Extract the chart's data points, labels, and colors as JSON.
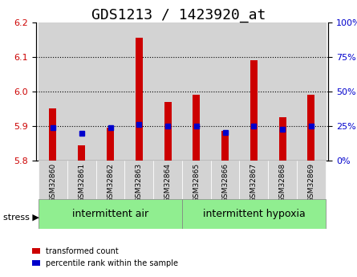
{
  "title": "GDS1213 / 1423920_at",
  "samples": [
    "GSM32860",
    "GSM32861",
    "GSM32862",
    "GSM32863",
    "GSM32864",
    "GSM32865",
    "GSM32866",
    "GSM32867",
    "GSM32868",
    "GSM32869"
  ],
  "red_values": [
    5.95,
    5.845,
    5.895,
    6.155,
    5.97,
    5.99,
    5.885,
    6.09,
    5.925,
    5.99
  ],
  "blue_values": [
    5.895,
    5.878,
    5.895,
    5.905,
    5.9,
    5.9,
    5.882,
    5.9,
    5.89,
    5.9
  ],
  "ylim": [
    5.8,
    6.2
  ],
  "yticks_left": [
    5.8,
    5.9,
    6.0,
    6.1,
    6.2
  ],
  "right_ticks_pos": [
    5.8,
    5.9,
    6.0,
    6.1,
    6.2
  ],
  "right_tick_labels": [
    "0%",
    "25%",
    "50%",
    "75%",
    "100%"
  ],
  "group1_label": "intermittent air",
  "group2_label": "intermittent hypoxia",
  "group1_indices": [
    0,
    1,
    2,
    3,
    4
  ],
  "group2_indices": [
    5,
    6,
    7,
    8,
    9
  ],
  "stress_label": "stress",
  "legend_red": "transformed count",
  "legend_blue": "percentile rank within the sample",
  "bar_bottom": 5.8,
  "group_bg_color": "#90EE90",
  "sample_bg_color": "#D3D3D3",
  "red_color": "#CC0000",
  "blue_color": "#0000CC",
  "title_fontsize": 13,
  "tick_fontsize": 8,
  "group_fontsize": 9,
  "bar_width": 0.5
}
